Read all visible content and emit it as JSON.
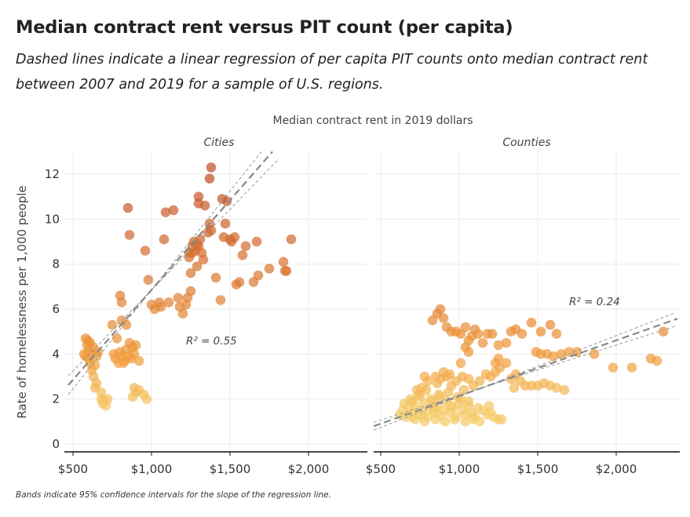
{
  "header": {
    "title": "Median contract rent versus PIT count (per capita)",
    "subtitle": "Dashed lines indicate a linear regression of per capita PIT counts onto median contract rent between 2007 and 2019 for a sample of U.S. regions.",
    "note": "Bands indicate 95% confidence intervals for the slope of the regression line."
  },
  "chart_data": {
    "type": "scatter",
    "title": "Median contract rent versus PIT count (per capita)",
    "xlabel": "Median contract rent in 2019 dollars",
    "ylabel": "Rate of homelessness per 1,000 people",
    "xlim": [
      450,
      2400
    ],
    "ylim": [
      -0.3,
      13
    ],
    "x_ticks": [
      500,
      1000,
      1500,
      2000
    ],
    "x_tick_labels": [
      "$500",
      "$1,000",
      "$1,500",
      "$2,000"
    ],
    "y_ticks": [
      0,
      2,
      4,
      6,
      8,
      10,
      12
    ],
    "y_tick_labels": [
      "0",
      "2",
      "4",
      "6",
      "8",
      "10",
      "12"
    ],
    "grid": true,
    "legend": "none",
    "colors": {
      "low": "#f5cc6a",
      "mid": "#f0993a",
      "high": "#c0502c",
      "regression": "#888888",
      "band": "#999999"
    },
    "panels": [
      {
        "name": "Cities",
        "annotation": "R² = 0.55",
        "regression": {
          "slope": 0.00798,
          "intercept": -1.13,
          "band": 0.5
        },
        "points": [
          [
            580,
            4.7
          ],
          [
            590,
            4.4
          ],
          [
            600,
            4.2
          ],
          [
            570,
            4.0
          ],
          [
            600,
            3.8
          ],
          [
            620,
            4.0
          ],
          [
            630,
            4.3
          ],
          [
            610,
            3.6
          ],
          [
            620,
            3.3
          ],
          [
            640,
            3.5
          ],
          [
            630,
            3.0
          ],
          [
            650,
            2.7
          ],
          [
            640,
            2.5
          ],
          [
            660,
            4.1
          ],
          [
            580,
            3.9
          ],
          [
            595,
            4.6
          ],
          [
            650,
            3.9
          ],
          [
            610,
            4.5
          ],
          [
            680,
            2.0
          ],
          [
            690,
            1.8
          ],
          [
            700,
            1.9
          ],
          [
            720,
            2.0
          ],
          [
            680,
            2.3
          ],
          [
            710,
            1.7
          ],
          [
            760,
            4.0
          ],
          [
            770,
            3.8
          ],
          [
            790,
            3.6
          ],
          [
            800,
            4.1
          ],
          [
            810,
            3.9
          ],
          [
            830,
            3.7
          ],
          [
            850,
            3.9
          ],
          [
            870,
            3.8
          ],
          [
            890,
            4.0
          ],
          [
            900,
            4.4
          ],
          [
            920,
            3.7
          ],
          [
            880,
            4.3
          ],
          [
            840,
            4.2
          ],
          [
            820,
            3.6
          ],
          [
            780,
            4.7
          ],
          [
            860,
            4.5
          ],
          [
            750,
            5.3
          ],
          [
            810,
            5.5
          ],
          [
            840,
            5.3
          ],
          [
            810,
            6.3
          ],
          [
            800,
            6.6
          ],
          [
            890,
            2.5
          ],
          [
            920,
            2.4
          ],
          [
            880,
            2.1
          ],
          [
            950,
            2.2
          ],
          [
            970,
            2.0
          ],
          [
            900,
            2.3
          ],
          [
            850,
            10.5
          ],
          [
            860,
            9.3
          ],
          [
            960,
            8.6
          ],
          [
            980,
            7.3
          ],
          [
            1000,
            6.2
          ],
          [
            1020,
            6.0
          ],
          [
            1050,
            6.3
          ],
          [
            1060,
            6.1
          ],
          [
            1080,
            9.1
          ],
          [
            1090,
            10.3
          ],
          [
            1140,
            10.4
          ],
          [
            1110,
            6.3
          ],
          [
            1170,
            6.5
          ],
          [
            1180,
            6.1
          ],
          [
            1200,
            5.8
          ],
          [
            1220,
            6.2
          ],
          [
            1230,
            6.5
          ],
          [
            1250,
            7.6
          ],
          [
            1240,
            8.3
          ],
          [
            1240,
            8.5
          ],
          [
            1250,
            6.8
          ],
          [
            1280,
            8.6
          ],
          [
            1290,
            7.9
          ],
          [
            1300,
            8.8
          ],
          [
            1310,
            9.1
          ],
          [
            1270,
            9.0
          ],
          [
            1260,
            8.8
          ],
          [
            1320,
            8.5
          ],
          [
            1330,
            8.2
          ],
          [
            1300,
            10.7
          ],
          [
            1300,
            11.0
          ],
          [
            1340,
            10.6
          ],
          [
            1360,
            9.4
          ],
          [
            1370,
            9.8
          ],
          [
            1380,
            9.5
          ],
          [
            1380,
            12.3
          ],
          [
            1370,
            11.8
          ],
          [
            1410,
            7.4
          ],
          [
            1440,
            6.4
          ],
          [
            1450,
            10.9
          ],
          [
            1480,
            10.8
          ],
          [
            1460,
            9.2
          ],
          [
            1470,
            9.8
          ],
          [
            1500,
            9.1
          ],
          [
            1510,
            9.0
          ],
          [
            1530,
            9.2
          ],
          [
            1540,
            7.1
          ],
          [
            1560,
            7.2
          ],
          [
            1580,
            8.4
          ],
          [
            1600,
            8.8
          ],
          [
            1650,
            7.2
          ],
          [
            1670,
            9.0
          ],
          [
            1680,
            7.5
          ],
          [
            1750,
            7.8
          ],
          [
            1840,
            8.1
          ],
          [
            1850,
            7.7
          ],
          [
            1860,
            7.7
          ],
          [
            1890,
            9.1
          ],
          [
            1290,
            8.9
          ],
          [
            1260,
            8.5
          ]
        ]
      },
      {
        "name": "Counties",
        "annotation": "R² = 0.24",
        "regression": {
          "slope": 0.00247,
          "intercept": -0.33,
          "band": 0.5
        },
        "points": [
          [
            620,
            1.3
          ],
          [
            640,
            1.5
          ],
          [
            660,
            1.2
          ],
          [
            680,
            1.6
          ],
          [
            700,
            1.4
          ],
          [
            720,
            1.7
          ],
          [
            740,
            1.3
          ],
          [
            760,
            1.5
          ],
          [
            780,
            1.8
          ],
          [
            800,
            1.2
          ],
          [
            820,
            1.6
          ],
          [
            840,
            1.4
          ],
          [
            860,
            1.7
          ],
          [
            880,
            1.3
          ],
          [
            900,
            1.5
          ],
          [
            920,
            1.9
          ],
          [
            940,
            1.4
          ],
          [
            960,
            1.6
          ],
          [
            980,
            1.2
          ],
          [
            1000,
            1.8
          ],
          [
            1020,
            1.5
          ],
          [
            1040,
            1.3
          ],
          [
            1060,
            1.7
          ],
          [
            1080,
            1.4
          ],
          [
            1100,
            1.2
          ],
          [
            1120,
            1.6
          ],
          [
            1150,
            1.5
          ],
          [
            1180,
            1.3
          ],
          [
            1200,
            1.4
          ],
          [
            1220,
            1.2
          ],
          [
            1250,
            1.1
          ],
          [
            700,
            1.9
          ],
          [
            750,
            2.1
          ],
          [
            820,
            2.0
          ],
          [
            870,
            2.2
          ],
          [
            930,
            2.3
          ],
          [
            990,
            2.1
          ],
          [
            1030,
            2.4
          ],
          [
            650,
            1.8
          ],
          [
            690,
            2.0
          ],
          [
            740,
            2.2
          ],
          [
            790,
            2.4
          ],
          [
            830,
            1.9
          ],
          [
            880,
            2.1
          ],
          [
            950,
            1.7
          ],
          [
            1010,
            2.0
          ],
          [
            1060,
            1.9
          ],
          [
            720,
            1.1
          ],
          [
            780,
            1.0
          ],
          [
            850,
            1.1
          ],
          [
            910,
            1.0
          ],
          [
            970,
            1.1
          ],
          [
            1040,
            1.0
          ],
          [
            1090,
            1.1
          ],
          [
            760,
            2.5
          ],
          [
            800,
            2.8
          ],
          [
            850,
            3.0
          ],
          [
            880,
            2.9
          ],
          [
            900,
            3.2
          ],
          [
            920,
            3.0
          ],
          [
            950,
            2.6
          ],
          [
            980,
            2.8
          ],
          [
            1020,
            3.0
          ],
          [
            780,
            3.0
          ],
          [
            730,
            2.4
          ],
          [
            860,
            2.7
          ],
          [
            940,
            3.1
          ],
          [
            1060,
            2.9
          ],
          [
            1090,
            2.6
          ],
          [
            1130,
            2.8
          ],
          [
            1170,
            3.1
          ],
          [
            1200,
            3.0
          ],
          [
            1230,
            3.2
          ],
          [
            1260,
            3.4
          ],
          [
            1300,
            3.6
          ],
          [
            1330,
            2.9
          ],
          [
            1360,
            3.1
          ],
          [
            1390,
            2.8
          ],
          [
            1350,
            2.5
          ],
          [
            1420,
            2.6
          ],
          [
            1460,
            2.6
          ],
          [
            1500,
            2.6
          ],
          [
            1540,
            2.7
          ],
          [
            1580,
            2.6
          ],
          [
            1620,
            2.5
          ],
          [
            1670,
            2.4
          ],
          [
            830,
            5.5
          ],
          [
            860,
            5.8
          ],
          [
            880,
            6.0
          ],
          [
            900,
            5.6
          ],
          [
            920,
            5.2
          ],
          [
            950,
            5.0
          ],
          [
            980,
            5.0
          ],
          [
            1010,
            4.9
          ],
          [
            1040,
            5.2
          ],
          [
            1060,
            4.6
          ],
          [
            1080,
            4.8
          ],
          [
            1100,
            5.1
          ],
          [
            1120,
            4.9
          ],
          [
            1150,
            4.5
          ],
          [
            1180,
            4.9
          ],
          [
            1210,
            4.9
          ],
          [
            1250,
            4.4
          ],
          [
            1300,
            4.5
          ],
          [
            1330,
            5.0
          ],
          [
            1360,
            5.1
          ],
          [
            1400,
            4.9
          ],
          [
            1460,
            5.4
          ],
          [
            1520,
            5.0
          ],
          [
            1580,
            5.3
          ],
          [
            1620,
            4.9
          ],
          [
            1040,
            4.3
          ],
          [
            1060,
            4.1
          ],
          [
            1010,
            3.6
          ],
          [
            1230,
            3.6
          ],
          [
            1250,
            3.8
          ],
          [
            1490,
            4.1
          ],
          [
            1520,
            4.0
          ],
          [
            1560,
            4.0
          ],
          [
            1600,
            3.9
          ],
          [
            1650,
            4.0
          ],
          [
            1700,
            4.1
          ],
          [
            1750,
            4.1
          ],
          [
            1860,
            4.0
          ],
          [
            1980,
            3.4
          ],
          [
            2100,
            3.4
          ],
          [
            2220,
            3.8
          ],
          [
            2260,
            3.7
          ],
          [
            2300,
            5.0
          ],
          [
            700,
            1.2
          ],
          [
            770,
            1.3
          ],
          [
            840,
            1.6
          ],
          [
            1130,
            1.0
          ],
          [
            1190,
            1.7
          ],
          [
            1270,
            1.1
          ]
        ]
      }
    ]
  }
}
